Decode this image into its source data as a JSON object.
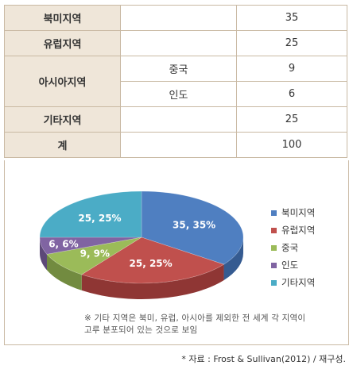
{
  "table": {
    "rows": [
      {
        "region": "북미지역",
        "sub": "",
        "value": "35"
      },
      {
        "region": "유럽지역",
        "sub": "",
        "value": "25"
      },
      {
        "region": "아시아지역",
        "sub": "중국",
        "value": "9"
      },
      {
        "region": "",
        "sub": "인도",
        "value": "6"
      },
      {
        "region": "기타지역",
        "sub": "",
        "value": "25"
      },
      {
        "region": "계",
        "sub": "",
        "value": "100"
      }
    ]
  },
  "chart_data": {
    "type": "pie",
    "style": "3d",
    "categories": [
      "북미지역",
      "유럽지역",
      "중국",
      "인도",
      "기타지역"
    ],
    "values": [
      35,
      25,
      9,
      6,
      25
    ],
    "data_labels": [
      "35, 35%",
      "25, 25%",
      "9, 9%",
      "6, 6%",
      "25, 25%"
    ],
    "colors": [
      "#4f7fc1",
      "#c0504d",
      "#9bbb59",
      "#8064a2",
      "#4bacc6"
    ],
    "side_colors": [
      "#355b91",
      "#8f3634",
      "#728b40",
      "#5c4878",
      "#2f8298"
    ],
    "legend": {
      "placement": "right",
      "entries": [
        "북미지역",
        "유럽지역",
        "중국",
        "인도",
        "기타지역"
      ]
    }
  },
  "note": {
    "line1": "※ 기타 지역은 북미, 유럽, 아시아를 제외한 전 세계 각 지역이",
    "line2": "고루 분포되어 있는 것으로 보임"
  },
  "source": "* 자료 : Frost & Sullivan(2012) / 재구성."
}
